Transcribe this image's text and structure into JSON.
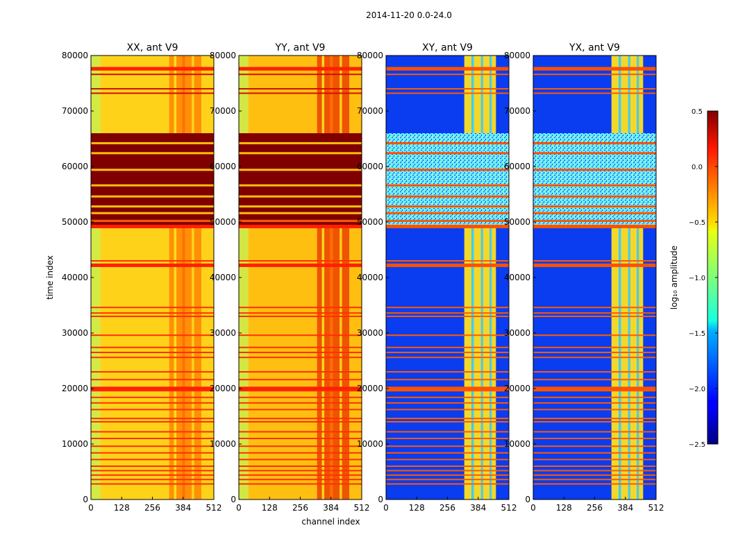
{
  "figure": {
    "title": "2014-11-20 0.0-24.0"
  },
  "chart_data": [
    {
      "type": "heatmap",
      "panel": "XX",
      "title": "XX, ant V9",
      "xlabel": "",
      "ylabel": "time index",
      "xlim": [
        0,
        512
      ],
      "ylim": [
        0,
        80000
      ],
      "xticks": [
        "0",
        "128",
        "256",
        "384",
        "512"
      ],
      "yticks": [
        "0",
        "10000",
        "20000",
        "30000",
        "40000",
        "50000",
        "60000",
        "70000",
        "80000"
      ],
      "background": "#ffd21a",
      "low_edge": "#c8f050",
      "band": "#ff7a00",
      "flag_rows": [
        2800,
        3600,
        4400,
        5200,
        6000,
        7200,
        8400,
        9600,
        11000,
        12200,
        14000,
        14600,
        16200,
        17400,
        18400,
        19600,
        20200,
        21600,
        23000,
        25600,
        26500,
        27400,
        29600,
        33000,
        33600,
        34600,
        42200,
        43000,
        49000,
        50200
      ],
      "saturated_blocks": [
        [
          49000,
          66000
        ]
      ],
      "gap_rows": [
        50200,
        51600,
        52800,
        54600,
        56600,
        59400,
        62400,
        64200
      ],
      "high_rows": [
        73200,
        74000,
        76600,
        77800
      ]
    },
    {
      "type": "heatmap",
      "panel": "YY",
      "title": "YY, ant V9",
      "xlabel": "channel index",
      "ylabel": "",
      "xlim": [
        0,
        512
      ],
      "ylim": [
        0,
        80000
      ],
      "xticks": [
        "0",
        "128",
        "256",
        "384",
        "512"
      ],
      "yticks": [
        "0",
        "10000",
        "20000",
        "30000",
        "40000",
        "50000",
        "60000",
        "70000",
        "80000"
      ],
      "background": "#ffbf10",
      "low_edge": "#c8f050",
      "band": "#e83000",
      "flag_rows": [
        2800,
        3600,
        4400,
        5200,
        6000,
        7200,
        8400,
        9600,
        11000,
        12200,
        14000,
        14600,
        16200,
        17400,
        18400,
        19600,
        20200,
        21600,
        23000,
        25600,
        26500,
        27400,
        29600,
        33000,
        33600,
        34600,
        42200,
        43000,
        49000,
        50200
      ],
      "saturated_blocks": [
        [
          49000,
          66000
        ]
      ],
      "gap_rows": [
        50200,
        51600,
        52800,
        54600,
        56600,
        59400,
        62400,
        64200
      ],
      "high_rows": [
        73200,
        74000,
        76600,
        77800
      ]
    },
    {
      "type": "heatmap",
      "panel": "XY",
      "title": "XY, ant V9",
      "xlabel": "",
      "ylabel": "",
      "xlim": [
        0,
        512
      ],
      "ylim": [
        0,
        80000
      ],
      "xticks": [
        "0",
        "128",
        "256",
        "384",
        "512"
      ],
      "yticks": [
        "0",
        "10000",
        "20000",
        "30000",
        "40000",
        "50000",
        "60000",
        "70000",
        "80000"
      ],
      "background": "#0a3cf0",
      "low_edge": "#0a3cf0",
      "band": "#ffe020",
      "flag_rows": [
        2800,
        3600,
        4400,
        5200,
        6000,
        7200,
        8400,
        9600,
        11000,
        12200,
        14000,
        14600,
        16200,
        17400,
        18400,
        19600,
        20200,
        21600,
        23000,
        25600,
        26500,
        27400,
        29600,
        33000,
        33600,
        34600,
        42200,
        43000,
        49000,
        50200
      ],
      "saturated_blocks": [
        [
          49000,
          66000
        ]
      ],
      "gap_rows": [
        50200,
        51600,
        52800,
        54600,
        56600,
        59400,
        62400,
        64200
      ],
      "high_rows": [
        73200,
        74000,
        76600,
        77800
      ]
    },
    {
      "type": "heatmap",
      "panel": "YX",
      "title": "YX, ant V9",
      "xlabel": "",
      "ylabel": "",
      "xlim": [
        0,
        512
      ],
      "ylim": [
        0,
        80000
      ],
      "xticks": [
        "0",
        "128",
        "256",
        "384",
        "512"
      ],
      "yticks": [
        "0",
        "10000",
        "20000",
        "30000",
        "40000",
        "50000",
        "60000",
        "70000",
        "80000"
      ],
      "background": "#0a3cf0",
      "low_edge": "#0a3cf0",
      "band": "#ffe020",
      "flag_rows": [
        2800,
        3600,
        4400,
        5200,
        6000,
        7200,
        8400,
        9600,
        11000,
        12200,
        14000,
        14600,
        16200,
        17400,
        18400,
        19600,
        20200,
        21600,
        23000,
        25600,
        26500,
        27400,
        29600,
        33000,
        33600,
        34600,
        42200,
        43000,
        49000,
        50200
      ],
      "saturated_blocks": [
        [
          49000,
          66000
        ]
      ],
      "gap_rows": [
        50200,
        51600,
        52800,
        54600,
        56600,
        59400,
        62400,
        64200
      ],
      "high_rows": [
        73200,
        74000,
        76600,
        77800
      ]
    }
  ],
  "colorbar": {
    "label": "log₁₀ amplitude",
    "range": [
      -2.5,
      0.5
    ],
    "ticks": [
      "0.5",
      "0.0",
      "−0.5",
      "−1.0",
      "−1.5",
      "−2.0",
      "−2.5"
    ],
    "tick_values": [
      0.5,
      0.0,
      -0.5,
      -1.0,
      -1.5,
      -2.0,
      -2.5
    ],
    "colormap": "jet"
  }
}
